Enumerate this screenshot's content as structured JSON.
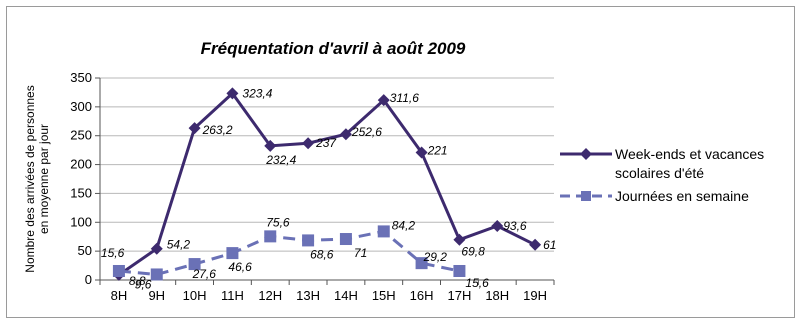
{
  "chart_data": {
    "type": "line",
    "title": "Fréquentation d'avril à août 2009",
    "ylabel_line1": "Nombre des arrivées de personnes",
    "ylabel_line2": "en moyenne par jour",
    "xlabel": "",
    "ylim": [
      0,
      350
    ],
    "yticks": [
      0,
      50,
      100,
      150,
      200,
      250,
      300,
      350
    ],
    "grid": true,
    "legend_position": "right",
    "categories": [
      "8H",
      "9H",
      "10H",
      "11H",
      "12H",
      "13H",
      "14H",
      "15H",
      "16H",
      "17H",
      "18H",
      "19H"
    ],
    "series": [
      {
        "name_line1": "Week-ends et vacances",
        "name_line2": "scolaires d'été",
        "color": "#3d2a6e",
        "marker": "diamond",
        "dash": "solid",
        "values": [
          8.8,
          54.2,
          263.2,
          323.4,
          232.4,
          237,
          252.6,
          311.6,
          221,
          69.8,
          93.6,
          61
        ],
        "labels": [
          "8,8",
          "54,2",
          "263,2",
          "323,4",
          "232,4",
          "237",
          "252,6",
          "311,6",
          "221",
          "69,8",
          "93,6",
          "61"
        ]
      },
      {
        "name_line1": "Journées en semaine",
        "color": "#6a71b6",
        "marker": "square",
        "dash": "dashed",
        "values": [
          15.6,
          9.6,
          27.6,
          46.6,
          75.6,
          68.6,
          71,
          84.2,
          29.2,
          15.6,
          null,
          null
        ],
        "labels": [
          "15,6",
          "9,6",
          "27,6",
          "46,6",
          "75,6",
          "68,6",
          "71",
          "84,2",
          "29,2",
          "15,6",
          null,
          null
        ]
      }
    ]
  }
}
